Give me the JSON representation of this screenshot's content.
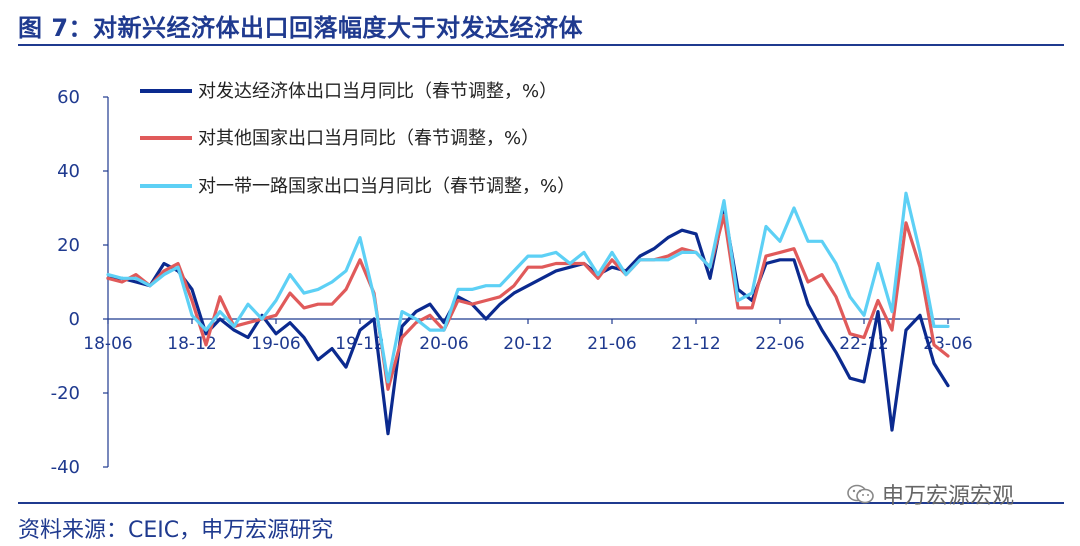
{
  "header": {
    "title": "图 7：对新兴经济体出口回落幅度大于对发达经济体"
  },
  "footer": {
    "source": "资料来源：CEIC，申万宏源研究",
    "watermark": "申万宏源宏观"
  },
  "chart_data": {
    "type": "line",
    "x": [
      "18-06",
      "18-07",
      "18-08",
      "18-09",
      "18-10",
      "18-11",
      "18-12",
      "19-01",
      "19-02",
      "19-03",
      "19-04",
      "19-05",
      "19-06",
      "19-07",
      "19-08",
      "19-09",
      "19-10",
      "19-11",
      "19-12",
      "20-01",
      "20-02",
      "20-03",
      "20-04",
      "20-05",
      "20-06",
      "20-07",
      "20-08",
      "20-09",
      "20-10",
      "20-11",
      "20-12",
      "21-01",
      "21-02",
      "21-03",
      "21-04",
      "21-05",
      "21-06",
      "21-07",
      "21-08",
      "21-09",
      "21-10",
      "21-11",
      "21-12",
      "22-01",
      "22-02",
      "22-03",
      "22-04",
      "22-05",
      "22-06",
      "22-07",
      "22-08",
      "22-09",
      "22-10",
      "22-11",
      "22-12",
      "23-01",
      "23-02",
      "23-03",
      "23-04",
      "23-05",
      "23-06"
    ],
    "xticks": [
      "18-06",
      "18-12",
      "19-06",
      "19-12",
      "20-06",
      "20-12",
      "21-06",
      "21-12",
      "22-06",
      "22-12",
      "23-06"
    ],
    "ylim": [
      -40,
      60
    ],
    "yticks": [
      60,
      40,
      20,
      0,
      -20,
      -40
    ],
    "legend_position": "top",
    "series": [
      {
        "name": "对发达经济体出口当月同比（春节调整，%）",
        "color": "#0b2a8f",
        "values": [
          11,
          11,
          10,
          9,
          15,
          13,
          8,
          -4,
          0,
          -3,
          -5,
          1,
          -4,
          -1,
          -5,
          -11,
          -8,
          -13,
          -3,
          0,
          -31,
          -2,
          2,
          4,
          -1,
          6,
          4,
          0,
          4,
          7,
          9,
          11,
          13,
          14,
          15,
          12,
          14,
          13,
          17,
          19,
          22,
          24,
          23,
          11,
          30,
          8,
          5,
          15,
          16,
          16,
          4,
          -3,
          -9,
          -16,
          -17,
          2,
          -30,
          -3,
          1,
          -12,
          -18
        ]
      },
      {
        "name": "对其他国家出口当月同比（春节调整，%）",
        "color": "#e05a5a",
        "values": [
          11,
          10,
          12,
          9,
          13,
          15,
          5,
          -7,
          6,
          -2,
          -1,
          0,
          1,
          7,
          3,
          4,
          4,
          8,
          16,
          7,
          -19,
          -5,
          -1,
          1,
          -3,
          5,
          4,
          5,
          6,
          9,
          14,
          14,
          15,
          15,
          15,
          11,
          16,
          12,
          16,
          16,
          17,
          19,
          18,
          14,
          28,
          3,
          3,
          17,
          18,
          19,
          10,
          12,
          6,
          -4,
          -5,
          5,
          -3,
          26,
          14,
          -7,
          -10
        ]
      },
      {
        "name": "对一带一路国家出口当月同比（春节调整，%）",
        "color": "#5dd0f5",
        "values": [
          12,
          11,
          11,
          9,
          12,
          14,
          1,
          -3,
          2,
          -2,
          4,
          0,
          5,
          12,
          7,
          8,
          10,
          13,
          22,
          6,
          -17,
          2,
          0,
          -3,
          -3,
          8,
          8,
          9,
          9,
          13,
          17,
          17,
          18,
          15,
          18,
          12,
          18,
          12,
          16,
          16,
          16,
          18,
          18,
          14,
          32,
          5,
          7,
          25,
          21,
          30,
          21,
          21,
          15,
          6,
          1,
          15,
          2,
          34,
          18,
          -2,
          -2
        ]
      }
    ]
  }
}
